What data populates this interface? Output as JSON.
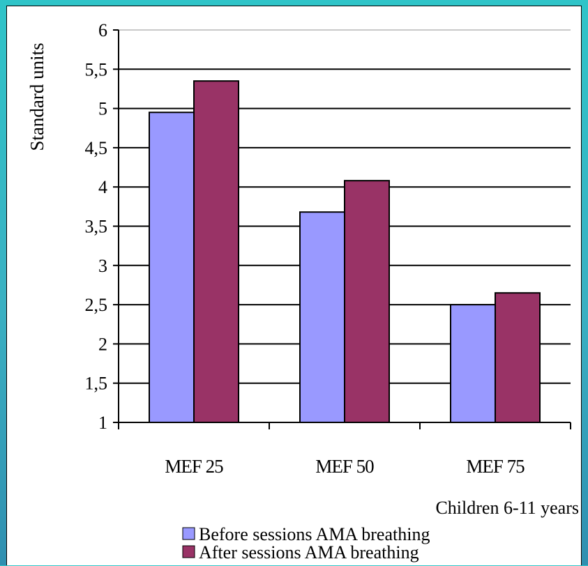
{
  "chart_data": {
    "type": "bar",
    "categories": [
      "MEF 25",
      "MEF 50",
      "MEF 75"
    ],
    "series": [
      {
        "name": "Before sessions AMA breathing",
        "color": "#9999ff",
        "values": [
          4.95,
          3.68,
          2.5
        ]
      },
      {
        "name": "After sessions AMA breathing",
        "color": "#993366",
        "values": [
          5.35,
          4.08,
          2.65
        ]
      }
    ],
    "ylabel": "Standard units",
    "xlabel": "Children 6-11 years",
    "ylim": [
      1,
      6
    ],
    "yticks": [
      "1",
      "1,5",
      "2",
      "2,5",
      "3",
      "3,5",
      "4",
      "4,5",
      "5",
      "5,5",
      "6"
    ],
    "grid": true,
    "legend_position": "bottom"
  }
}
